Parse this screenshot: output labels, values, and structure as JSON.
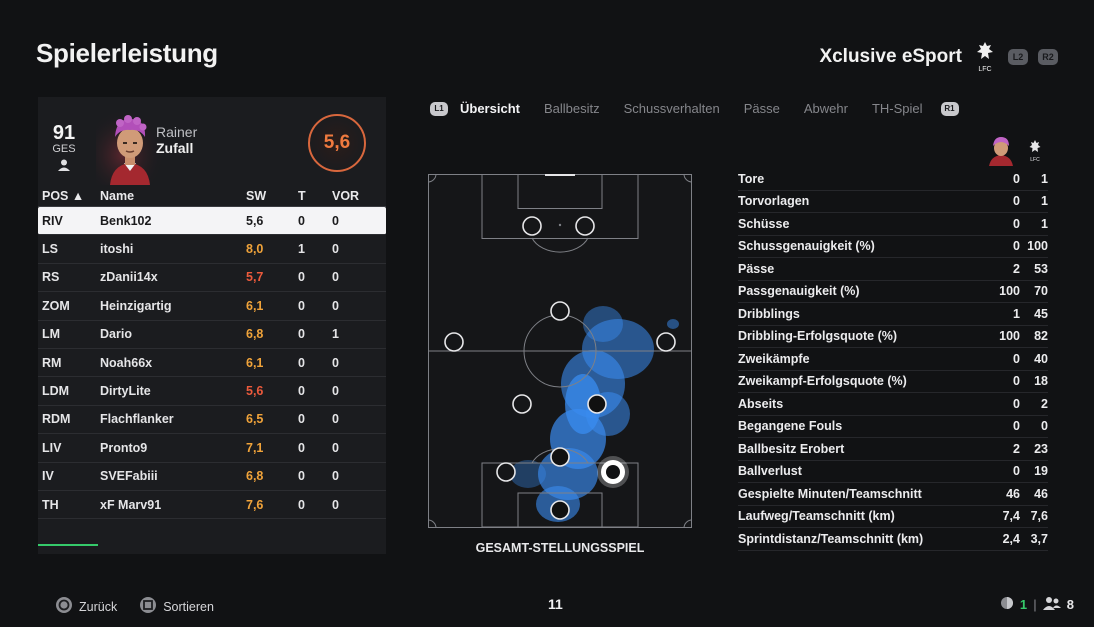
{
  "page_title": "Spielerleistung",
  "team": {
    "name": "Xclusive eSport",
    "crest_text": "LFC",
    "hints": [
      "L2",
      "R2"
    ]
  },
  "player": {
    "ovr": "91",
    "ovr_label": "GES",
    "first_name": "Rainer",
    "last_name": "Zufall",
    "rating": "5,6"
  },
  "table": {
    "headers": {
      "pos": "POS ▲",
      "name": "Name",
      "sw": "SW",
      "t": "T",
      "vor": "VOR"
    },
    "rows": [
      {
        "pos": "RIV",
        "name": "Benk102",
        "sw": "5,6",
        "t": "0",
        "vor": "0",
        "sw_color": "red"
      },
      {
        "pos": "LS",
        "name": "itoshi",
        "sw": "8,0",
        "t": "1",
        "vor": "0",
        "sw_color": "orange"
      },
      {
        "pos": "RS",
        "name": "zDanii14x",
        "sw": "5,7",
        "t": "0",
        "vor": "0",
        "sw_color": "red"
      },
      {
        "pos": "ZOM",
        "name": "Heinzigartig",
        "sw": "6,1",
        "t": "0",
        "vor": "0",
        "sw_color": "orange"
      },
      {
        "pos": "LM",
        "name": "Dario",
        "sw": "6,8",
        "t": "0",
        "vor": "1",
        "sw_color": "orange"
      },
      {
        "pos": "RM",
        "name": "Noah66x",
        "sw": "6,1",
        "t": "0",
        "vor": "0",
        "sw_color": "orange"
      },
      {
        "pos": "LDM",
        "name": "DirtyLite",
        "sw": "5,6",
        "t": "0",
        "vor": "0",
        "sw_color": "red"
      },
      {
        "pos": "RDM",
        "name": "Flachflanker",
        "sw": "6,5",
        "t": "0",
        "vor": "0",
        "sw_color": "orange"
      },
      {
        "pos": "LIV",
        "name": "Pronto9",
        "sw": "7,1",
        "t": "0",
        "vor": "0",
        "sw_color": "orange"
      },
      {
        "pos": "IV",
        "name": "SVEFabiii",
        "sw": "6,8",
        "t": "0",
        "vor": "0",
        "sw_color": "orange"
      },
      {
        "pos": "TH",
        "name": "xF Marv91",
        "sw": "7,6",
        "t": "0",
        "vor": "0",
        "sw_color": "orange"
      }
    ]
  },
  "tabs": {
    "left_hint": "L1",
    "right_hint": "R1",
    "items": [
      "Übersicht",
      "Ballbesitz",
      "Schussverhalten",
      "Pässe",
      "Abwehr",
      "TH-Spiel"
    ]
  },
  "pitch": {
    "caption": "GESAMT-STELLUNGSSPIEL"
  },
  "stats": [
    {
      "label": "Tore",
      "player": "0",
      "team": "1"
    },
    {
      "label": "Torvorlagen",
      "player": "0",
      "team": "1"
    },
    {
      "label": "Schüsse",
      "player": "0",
      "team": "1"
    },
    {
      "label": "Schussgenauigkeit (%)",
      "player": "0",
      "team": "100"
    },
    {
      "label": "Pässe",
      "player": "2",
      "team": "53"
    },
    {
      "label": "Passgenauigkeit (%)",
      "player": "100",
      "team": "70"
    },
    {
      "label": "Dribblings",
      "player": "1",
      "team": "45"
    },
    {
      "label": "Dribbling-Erfolgsquote (%)",
      "player": "100",
      "team": "82"
    },
    {
      "label": "Zweikämpfe",
      "player": "0",
      "team": "40"
    },
    {
      "label": "Zweikampf-Erfolgsquote (%)",
      "player": "0",
      "team": "18"
    },
    {
      "label": "Abseits",
      "player": "0",
      "team": "2"
    },
    {
      "label": "Begangene Fouls",
      "player": "0",
      "team": "0"
    },
    {
      "label": "Ballbesitz Erobert",
      "player": "2",
      "team": "23"
    },
    {
      "label": "Ballverlust",
      "player": "0",
      "team": "19"
    },
    {
      "label": "Gespielte Minuten/Teamschnitt",
      "player": "46",
      "team": "46"
    },
    {
      "label": "Laufweg/Teamschnitt (km)",
      "player": "7,4",
      "team": "7,6"
    },
    {
      "label": "Sprintdistanz/Teamschnitt (km)",
      "player": "2,4",
      "team": "3,7"
    }
  ],
  "footer": {
    "back_label": "Zurück",
    "sort_label": "Sortieren",
    "center_number": "11",
    "online_count": "1",
    "party_count": "8"
  },
  "colors": {
    "orange": "#f0a33a",
    "red": "#ec5a3c",
    "green": "#35c96a",
    "heat": "#3a8cf0"
  }
}
